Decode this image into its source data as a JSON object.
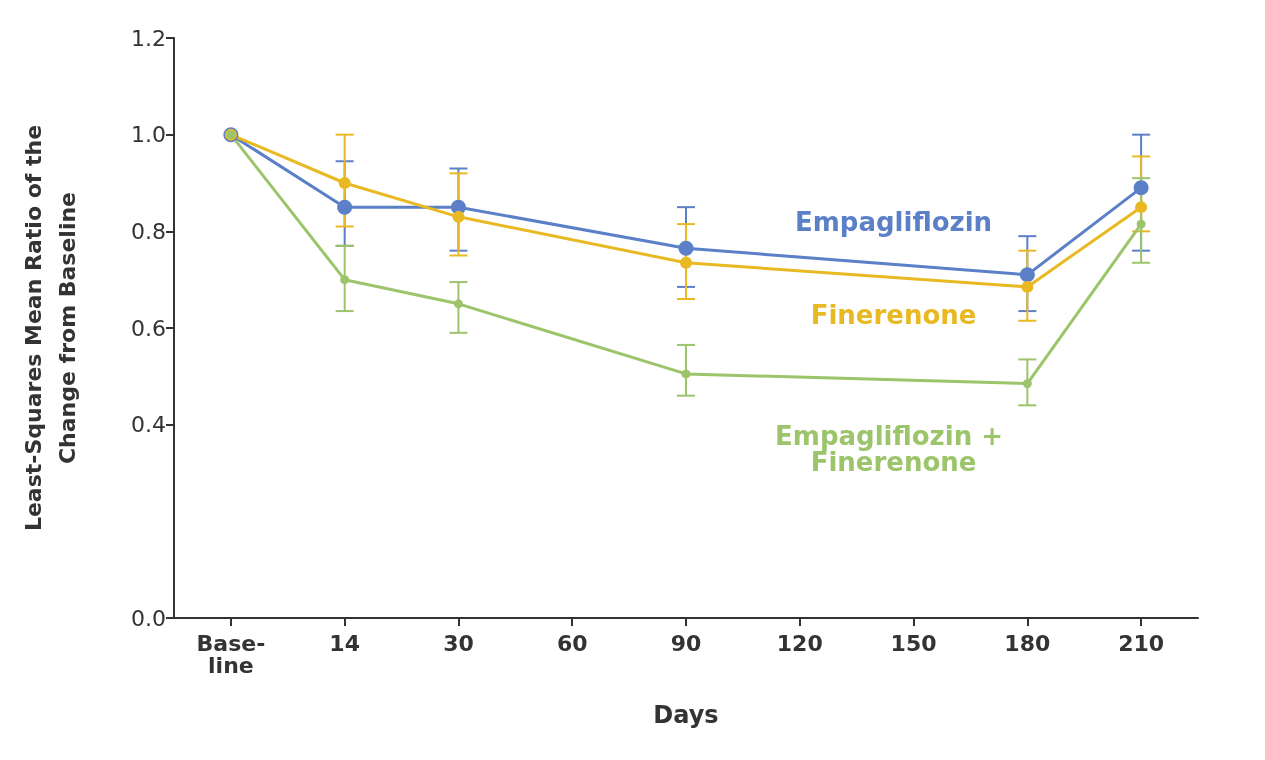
{
  "chart_data": {
    "type": "line",
    "xlabel": "Days",
    "ylabel": "Least-Squares Mean Ratio of the\nChange from Baseline",
    "categories": [
      "Base-\nline",
      "14",
      "30",
      "60",
      "90",
      "120",
      "150",
      "180",
      "210"
    ],
    "ylim": [
      0,
      1.2
    ],
    "yticks": [
      {
        "value": 0,
        "label": "0.0"
      },
      {
        "value": 0.4,
        "label": "0.4"
      },
      {
        "value": 0.6,
        "label": "0.6"
      },
      {
        "value": 0.8,
        "label": "0.8"
      },
      {
        "value": 1.0,
        "label": "1.0"
      },
      {
        "value": 1.2,
        "label": "1.2"
      }
    ],
    "grid": false,
    "legend": false,
    "marker": "circle",
    "line_style": "solid",
    "series": [
      {
        "name": "Empagliflozin",
        "color": "#5b80c8",
        "values": [
          1.0,
          0.85,
          0.85,
          null,
          0.765,
          null,
          null,
          0.71,
          0.89
        ],
        "errors": [
          null,
          [
            0.77,
            0.945
          ],
          [
            0.76,
            0.93
          ],
          null,
          [
            0.685,
            0.85
          ],
          null,
          null,
          [
            0.635,
            0.79
          ],
          [
            0.76,
            1.0
          ]
        ]
      },
      {
        "name": "Finerenone",
        "color": "#e8b923",
        "values": [
          1.0,
          0.9,
          0.83,
          null,
          0.735,
          null,
          null,
          0.685,
          0.85
        ],
        "errors": [
          null,
          [
            0.81,
            1.0
          ],
          [
            0.75,
            0.92
          ],
          null,
          [
            0.66,
            0.815
          ],
          null,
          null,
          [
            0.615,
            0.76
          ],
          [
            0.8,
            0.955
          ]
        ]
      },
      {
        "name": "Empagliflozin + Finerenone",
        "color": "#9cc46a",
        "values": [
          1.0,
          0.7,
          0.65,
          null,
          0.505,
          null,
          null,
          0.485,
          0.815
        ],
        "errors": [
          null,
          [
            0.635,
            0.77
          ],
          [
            0.59,
            0.695
          ],
          null,
          [
            0.46,
            0.565
          ],
          null,
          null,
          [
            0.44,
            0.535
          ],
          [
            0.735,
            0.91
          ]
        ]
      }
    ]
  }
}
